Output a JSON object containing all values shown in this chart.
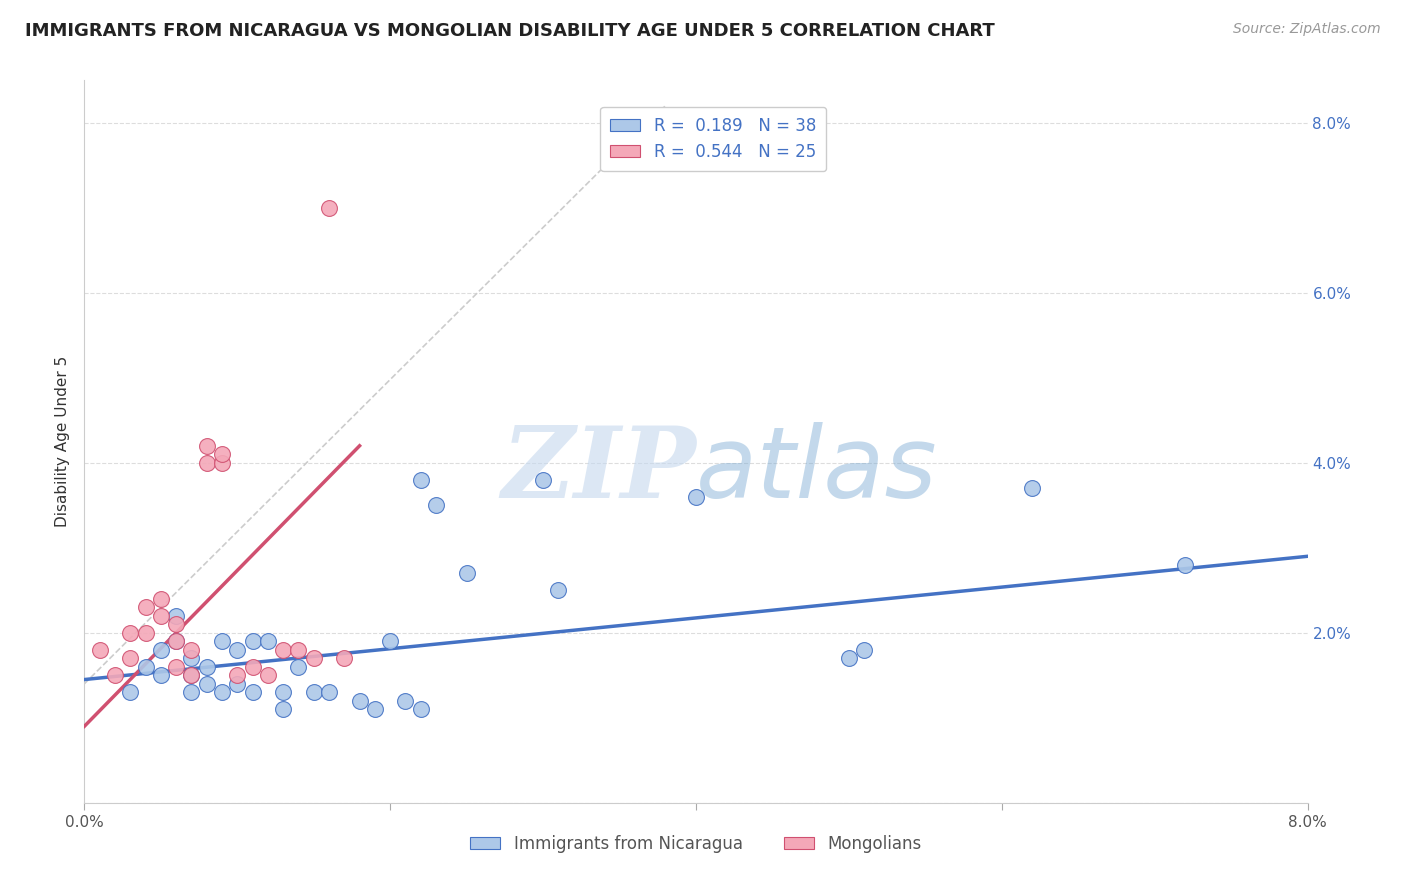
{
  "title": "IMMIGRANTS FROM NICARAGUA VS MONGOLIAN DISABILITY AGE UNDER 5 CORRELATION CHART",
  "source": "Source: ZipAtlas.com",
  "ylabel": "Disability Age Under 5",
  "legend_label_blue": "Immigrants from Nicaragua",
  "legend_label_pink": "Mongolians",
  "legend_r_blue": "0.189",
  "legend_n_blue": "38",
  "legend_r_pink": "0.544",
  "legend_n_pink": "25",
  "xlim": [
    0.0,
    0.08
  ],
  "ylim": [
    0.0,
    0.085
  ],
  "yticks": [
    0.0,
    0.02,
    0.04,
    0.06,
    0.08
  ],
  "ytick_labels": [
    "",
    "2.0%",
    "4.0%",
    "6.0%",
    "8.0%"
  ],
  "xticks": [
    0.0,
    0.02,
    0.04,
    0.06,
    0.08
  ],
  "xtick_labels": [
    "0.0%",
    "",
    "",
    "",
    "8.0%"
  ],
  "color_blue": "#adc8e8",
  "color_pink": "#f4a8b8",
  "line_color_blue": "#4472c4",
  "line_color_pink": "#d05070",
  "line_color_dashed": "#cccccc",
  "legend_text_color": "#4472c4",
  "watermark_zip": "ZIP",
  "watermark_atlas": "atlas",
  "blue_points_x": [
    0.003,
    0.004,
    0.005,
    0.005,
    0.006,
    0.006,
    0.007,
    0.007,
    0.007,
    0.008,
    0.008,
    0.009,
    0.009,
    0.01,
    0.01,
    0.011,
    0.011,
    0.012,
    0.013,
    0.013,
    0.014,
    0.015,
    0.016,
    0.018,
    0.019,
    0.02,
    0.021,
    0.022,
    0.022,
    0.023,
    0.025,
    0.03,
    0.031,
    0.04,
    0.05,
    0.051,
    0.062,
    0.072
  ],
  "blue_points_y": [
    0.013,
    0.016,
    0.015,
    0.018,
    0.019,
    0.022,
    0.015,
    0.017,
    0.013,
    0.016,
    0.014,
    0.013,
    0.019,
    0.018,
    0.014,
    0.013,
    0.019,
    0.019,
    0.013,
    0.011,
    0.016,
    0.013,
    0.013,
    0.012,
    0.011,
    0.019,
    0.012,
    0.011,
    0.038,
    0.035,
    0.027,
    0.038,
    0.025,
    0.036,
    0.017,
    0.018,
    0.037,
    0.028
  ],
  "pink_points_x": [
    0.001,
    0.002,
    0.003,
    0.003,
    0.004,
    0.004,
    0.005,
    0.005,
    0.006,
    0.006,
    0.006,
    0.007,
    0.007,
    0.008,
    0.008,
    0.009,
    0.009,
    0.01,
    0.011,
    0.012,
    0.013,
    0.014,
    0.015,
    0.016,
    0.017
  ],
  "pink_points_y": [
    0.018,
    0.015,
    0.02,
    0.017,
    0.023,
    0.02,
    0.024,
    0.022,
    0.016,
    0.019,
    0.021,
    0.018,
    0.015,
    0.042,
    0.04,
    0.04,
    0.041,
    0.015,
    0.016,
    0.015,
    0.018,
    0.018,
    0.017,
    0.07,
    0.017
  ],
  "blue_trendline_x": [
    0.0,
    0.08
  ],
  "blue_trendline_y": [
    0.0145,
    0.029
  ],
  "pink_trendline_x": [
    0.0,
    0.018
  ],
  "pink_trendline_y": [
    0.009,
    0.042
  ],
  "dashed_line_x": [
    0.0,
    0.038
  ],
  "dashed_line_y": [
    0.014,
    0.082
  ],
  "background_color": "#ffffff",
  "grid_color": "#dddddd"
}
